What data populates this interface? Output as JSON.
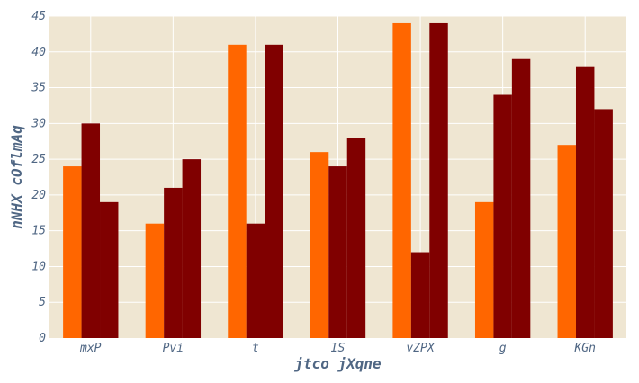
{
  "chart_data": {
    "type": "bar",
    "title": "",
    "xlabel": "jtco jXqne",
    "ylabel": "nNHX cOflmAq",
    "categories": [
      "mxP",
      "Pvi",
      "t",
      "IS",
      "vZPX",
      "g",
      "KGn"
    ],
    "series": [
      {
        "color": "#ff6600",
        "values": [
          24,
          16,
          41,
          26,
          44,
          19,
          27
        ]
      },
      {
        "color": "#800000",
        "values": [
          30,
          21,
          16,
          24,
          12,
          34,
          38
        ]
      },
      {
        "color": "#800000",
        "values": [
          19,
          25,
          41,
          28,
          44,
          39,
          32
        ]
      }
    ],
    "ylim": [
      0,
      45
    ],
    "yticks": [
      0,
      5,
      10,
      15,
      20,
      25,
      30,
      35,
      40,
      45
    ],
    "grid": true,
    "legend": "none",
    "colors": {
      "plot_background": "#efe6d2",
      "gridline": "#ffffff",
      "text": "#506784"
    }
  }
}
